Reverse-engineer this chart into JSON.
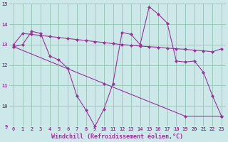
{
  "background_color": "#cce8e8",
  "grid_color": "#99ccbb",
  "line_color": "#993399",
  "marker": "D",
  "marker_size": 2.5,
  "xlabel": "Windchill (Refroidissement éolien,°C)",
  "xlabel_fontsize": 6,
  "xlim": [
    -0.5,
    23.5
  ],
  "ylim": [
    9,
    15
  ],
  "yticks": [
    9,
    10,
    11,
    12,
    13,
    14,
    15
  ],
  "xticks": [
    0,
    1,
    2,
    3,
    4,
    5,
    6,
    7,
    8,
    9,
    10,
    11,
    12,
    13,
    14,
    15,
    16,
    17,
    18,
    19,
    20,
    21,
    22,
    23
  ],
  "series1_x": [
    0,
    1,
    2,
    3,
    4,
    5,
    6,
    7,
    8,
    9,
    10,
    11,
    12,
    13,
    14,
    15,
    16,
    17,
    18,
    19,
    20,
    21,
    22,
    23
  ],
  "series1_y": [
    12.9,
    13.0,
    13.65,
    13.55,
    12.45,
    12.25,
    11.85,
    10.5,
    9.8,
    9.0,
    9.85,
    11.1,
    13.6,
    13.5,
    13.0,
    14.85,
    14.5,
    14.05,
    12.2,
    12.15,
    12.2,
    11.65,
    10.5,
    9.5
  ],
  "series2_x": [
    0,
    23
  ],
  "series2_y": [
    13.0,
    12.8
  ],
  "series2_full_x": [
    0,
    1,
    2,
    3,
    4,
    5,
    6,
    7,
    8,
    9,
    10,
    11,
    12,
    13,
    14,
    15,
    16,
    17,
    18,
    19,
    20,
    21,
    22,
    23
  ],
  "series2_full_y": [
    13.0,
    13.55,
    13.5,
    13.45,
    13.4,
    13.35,
    13.3,
    13.25,
    13.2,
    13.15,
    13.1,
    13.05,
    13.0,
    12.97,
    12.93,
    12.9,
    12.87,
    12.83,
    12.8,
    12.77,
    12.73,
    12.7,
    12.65,
    12.8
  ],
  "series3_x": [
    0,
    10,
    19,
    23
  ],
  "series3_y": [
    12.9,
    11.1,
    9.5,
    9.5
  ]
}
